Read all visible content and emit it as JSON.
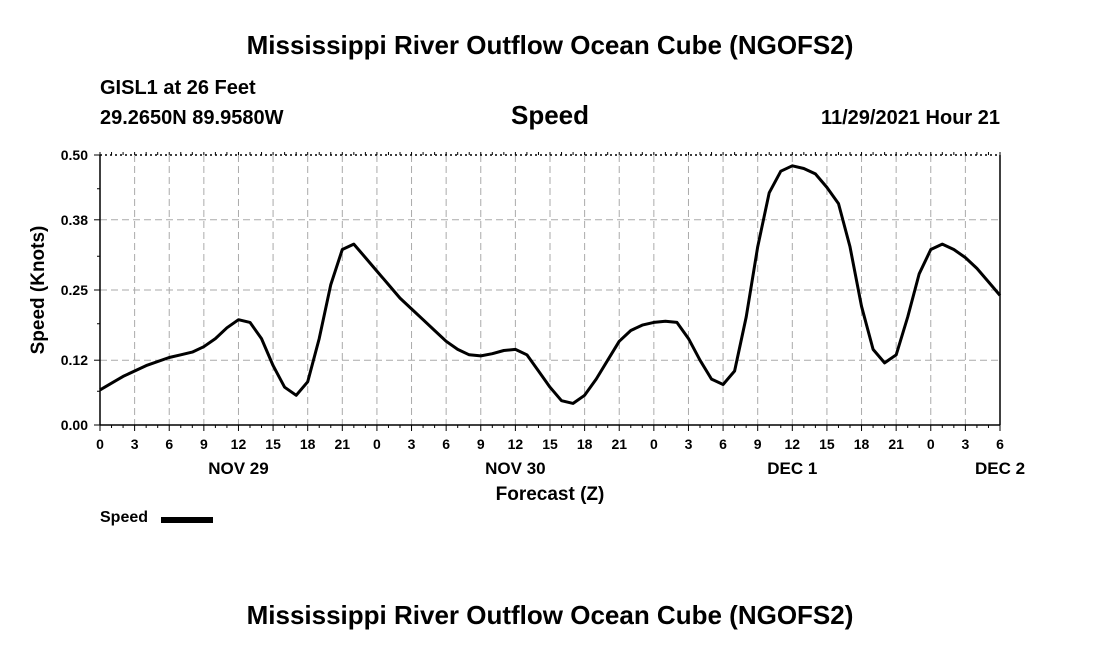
{
  "header": {
    "title": "Mississippi River Outflow Ocean Cube (NGOFS2)",
    "station": "GISL1 at 26 Feet",
    "coords": "29.2650N  89.9580W",
    "plot_title": "Speed",
    "timestamp": "11/29/2021 Hour 21"
  },
  "footer": {
    "title": "Mississippi River Outflow Ocean Cube (NGOFS2)"
  },
  "legend": {
    "label": "Speed"
  },
  "colors": {
    "line": "#000000",
    "grid": "#aaaaaa"
  },
  "chart_data": {
    "type": "line",
    "title": "Speed",
    "xlabel": "Forecast (Z)",
    "ylabel": "Speed (Knots)",
    "xlim": [
      0,
      78
    ],
    "ylim": [
      0,
      0.5
    ],
    "y_ticks": [
      "0.00",
      "0.12",
      "0.25",
      "0.38",
      "0.50"
    ],
    "x_ticks": [
      "0",
      "3",
      "6",
      "9",
      "12",
      "15",
      "18",
      "21",
      "0",
      "3",
      "6",
      "9",
      "12",
      "15",
      "18",
      "21",
      "0",
      "3",
      "6",
      "9",
      "12",
      "15",
      "18",
      "21",
      "0",
      "3",
      "6"
    ],
    "day_labels": [
      {
        "label": "NOV 29",
        "hour": 12
      },
      {
        "label": "NOV 30",
        "hour": 36
      },
      {
        "label": "DEC 1",
        "hour": 60
      },
      {
        "label": "DEC 2",
        "hour": 78
      }
    ],
    "series": [
      {
        "name": "Speed",
        "x": [
          0,
          2,
          4,
          6,
          7,
          8,
          9,
          10,
          11,
          12,
          13,
          14,
          15,
          16,
          17,
          18,
          19,
          20,
          21,
          22,
          23,
          24,
          25,
          26,
          27,
          28,
          29,
          30,
          31,
          32,
          33,
          34,
          35,
          36,
          37,
          38,
          39,
          40,
          41,
          42,
          43,
          44,
          45,
          46,
          47,
          48,
          49,
          50,
          51,
          52,
          53,
          54,
          55,
          56,
          57,
          58,
          59,
          60,
          61,
          62,
          63,
          64,
          65,
          66,
          67,
          68,
          69,
          70,
          71,
          72,
          73,
          74,
          75,
          76,
          77,
          78
        ],
        "values": [
          0.065,
          0.09,
          0.11,
          0.125,
          0.13,
          0.135,
          0.145,
          0.16,
          0.18,
          0.195,
          0.19,
          0.16,
          0.11,
          0.07,
          0.055,
          0.08,
          0.16,
          0.26,
          0.325,
          0.335,
          0.31,
          0.285,
          0.26,
          0.235,
          0.215,
          0.195,
          0.175,
          0.155,
          0.14,
          0.13,
          0.128,
          0.132,
          0.138,
          0.14,
          0.13,
          0.1,
          0.07,
          0.045,
          0.04,
          0.055,
          0.085,
          0.12,
          0.155,
          0.175,
          0.185,
          0.19,
          0.192,
          0.19,
          0.16,
          0.12,
          0.085,
          0.075,
          0.1,
          0.2,
          0.33,
          0.43,
          0.47,
          0.48,
          0.475,
          0.465,
          0.44,
          0.41,
          0.33,
          0.22,
          0.14,
          0.115,
          0.13,
          0.2,
          0.28,
          0.325,
          0.335,
          0.325,
          0.31,
          0.29,
          0.265,
          0.24
        ]
      }
    ]
  }
}
